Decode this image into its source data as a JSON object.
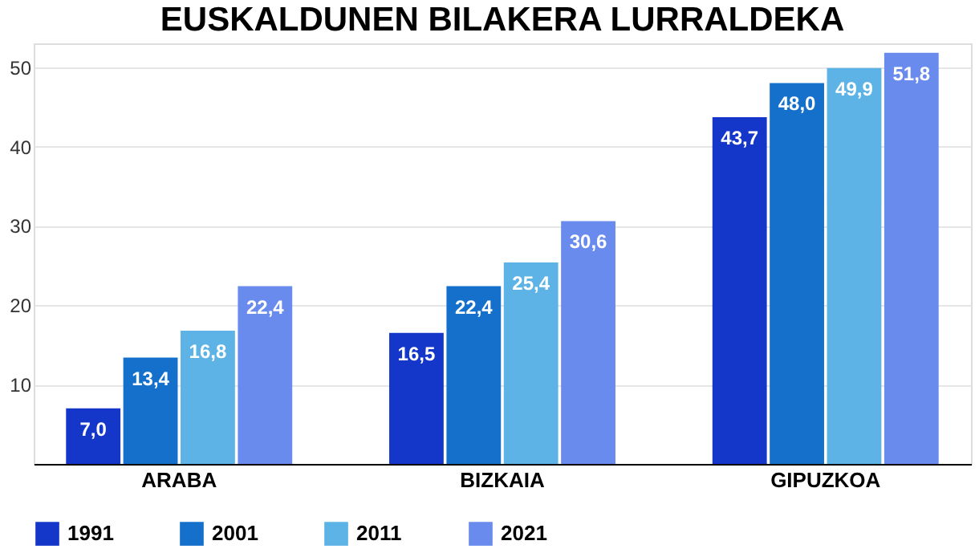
{
  "chart_data": {
    "type": "bar",
    "title": "EUSKALDUNEN BILAKERA LURRALDEKA",
    "categories": [
      "ARABA",
      "BIZKAIA",
      "GIPUZKOA"
    ],
    "series": [
      {
        "name": "1991",
        "color": "#1537c9",
        "values": [
          7.0,
          16.5,
          43.7
        ],
        "value_labels": [
          "7,0",
          "16,5",
          "43,7"
        ]
      },
      {
        "name": "2001",
        "color": "#1570cc",
        "values": [
          13.4,
          22.4,
          48.0
        ],
        "value_labels": [
          "13,4",
          "22,4",
          "48,0"
        ]
      },
      {
        "name": "2011",
        "color": "#5db3e6",
        "values": [
          16.8,
          25.4,
          49.9
        ],
        "value_labels": [
          "16,8",
          "25,4",
          "49,9"
        ]
      },
      {
        "name": "2021",
        "color": "#6a8bee",
        "values": [
          22.4,
          30.6,
          51.8
        ],
        "value_labels": [
          "22,4",
          "30,6",
          "51,8"
        ]
      }
    ],
    "ylim": [
      0,
      53
    ],
    "yticks": [
      10,
      20,
      30,
      40,
      50
    ],
    "grid": "y",
    "legend": "bottom"
  }
}
